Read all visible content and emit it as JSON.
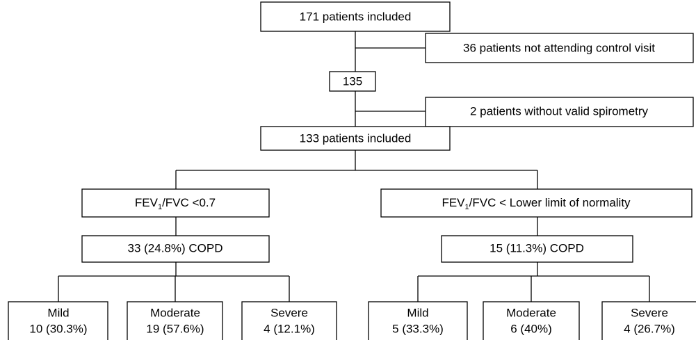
{
  "nodes": [
    {
      "label": "171 patients included"
    },
    {
      "label": "36 patients not attending control visit"
    },
    {
      "label": "135"
    },
    {
      "label": "2 patients without valid spirometry"
    },
    {
      "label": "133 patients included"
    },
    {
      "label_parts": [
        "FEV",
        "1",
        "/FVC <0.7"
      ]
    },
    {
      "label_parts": [
        "FEV",
        "1",
        "/FVC < Lower limit of normality"
      ]
    },
    {
      "label": "33 (24.8%) COPD"
    },
    {
      "label": "15 (11.3%) COPD"
    },
    {
      "label": "Mild",
      "detail": "10 (30.3%)"
    },
    {
      "label": "Moderate",
      "detail": "19 (57.6%)"
    },
    {
      "label": "Severe",
      "detail": "4 (12.1%)"
    },
    {
      "label": "Mild",
      "detail": "5 (33.3%)"
    },
    {
      "label": "Moderate",
      "detail": "6 (40%)"
    },
    {
      "label": "Severe",
      "detail": "4 (26.7%)"
    }
  ]
}
